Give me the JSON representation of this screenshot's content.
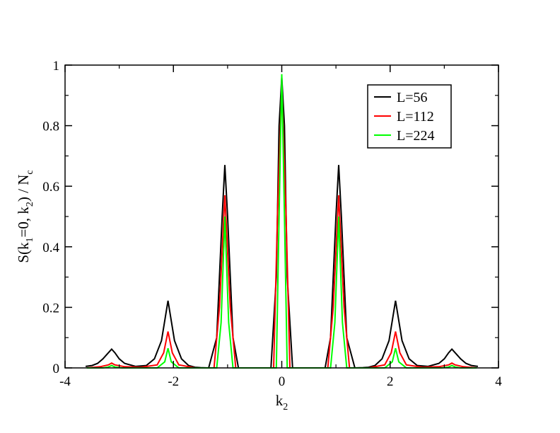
{
  "chart_data": {
    "type": "line",
    "title": "",
    "xlabel": "k",
    "xlabel_sub": "2",
    "ylabel_parts": [
      "S(k",
      "1",
      "=0, k",
      "2",
      ") / N",
      "c"
    ],
    "xlim": [
      -4,
      4
    ],
    "ylim": [
      0,
      1
    ],
    "xticks": [
      -4,
      -2,
      0,
      2,
      4
    ],
    "yticks": [
      0,
      0.2,
      0.4,
      0.6,
      0.8,
      1
    ],
    "xtick_labels": [
      "-4",
      "-2",
      "0",
      "2",
      "4"
    ],
    "ytick_labels": [
      "0",
      "0.2",
      "0.4",
      "0.6",
      "0.8",
      "1"
    ],
    "grid": false,
    "legend_position": "top-right",
    "series": [
      {
        "name": "L=56",
        "color": "#000000",
        "x": [
          -3.62,
          -3.5,
          -3.4,
          -3.3,
          -3.2,
          -3.14,
          -3.08,
          -3.0,
          -2.9,
          -2.7,
          -2.5,
          -2.35,
          -2.22,
          -2.1,
          -1.98,
          -1.85,
          -1.72,
          -1.6,
          -1.5,
          -1.35,
          -1.2,
          -1.1,
          -1.05,
          -1.0,
          -0.9,
          -0.8,
          -0.2,
          -0.1,
          -0.05,
          0.0,
          0.05,
          0.1,
          0.2,
          0.8,
          0.9,
          1.0,
          1.05,
          1.1,
          1.2,
          1.35,
          1.5,
          1.6,
          1.72,
          1.85,
          1.98,
          2.1,
          2.22,
          2.35,
          2.5,
          2.7,
          2.9,
          3.0,
          3.08,
          3.14,
          3.2,
          3.3,
          3.4,
          3.5,
          3.62
        ],
        "y": [
          0.005,
          0.008,
          0.015,
          0.03,
          0.05,
          0.062,
          0.05,
          0.03,
          0.015,
          0.005,
          0.008,
          0.03,
          0.09,
          0.222,
          0.09,
          0.03,
          0.008,
          0.002,
          0.001,
          0.0,
          0.1,
          0.5,
          0.67,
          0.5,
          0.1,
          0.0,
          0.0,
          0.3,
          0.8,
          0.96,
          0.8,
          0.3,
          0.0,
          0.0,
          0.1,
          0.5,
          0.67,
          0.5,
          0.1,
          0.0,
          0.001,
          0.002,
          0.008,
          0.03,
          0.09,
          0.222,
          0.09,
          0.03,
          0.008,
          0.005,
          0.015,
          0.03,
          0.05,
          0.062,
          0.05,
          0.03,
          0.015,
          0.008,
          0.005
        ]
      },
      {
        "name": "L=112",
        "color": "#ff0000",
        "x": [
          -3.6,
          -3.35,
          -3.2,
          -3.14,
          -3.08,
          -2.9,
          -2.6,
          -2.3,
          -2.18,
          -2.1,
          -2.02,
          -1.9,
          -1.6,
          -1.25,
          -1.15,
          -1.05,
          -0.95,
          -0.85,
          -0.15,
          -0.08,
          0.0,
          0.08,
          0.15,
          0.85,
          0.95,
          1.05,
          1.15,
          1.25,
          1.6,
          1.9,
          2.02,
          2.1,
          2.18,
          2.3,
          2.6,
          2.9,
          3.08,
          3.14,
          3.2,
          3.35,
          3.6
        ],
        "y": [
          0.0,
          0.004,
          0.01,
          0.016,
          0.01,
          0.004,
          0.002,
          0.01,
          0.05,
          0.12,
          0.05,
          0.01,
          0.0,
          0.0,
          0.2,
          0.57,
          0.2,
          0.0,
          0.0,
          0.5,
          0.93,
          0.5,
          0.0,
          0.0,
          0.2,
          0.57,
          0.2,
          0.0,
          0.0,
          0.01,
          0.05,
          0.12,
          0.05,
          0.01,
          0.002,
          0.004,
          0.01,
          0.016,
          0.01,
          0.004,
          0.0
        ]
      },
      {
        "name": "L=224",
        "color": "#00ff00",
        "x": [
          -3.6,
          -3.3,
          -3.2,
          -3.14,
          -3.08,
          -2.95,
          -2.3,
          -2.16,
          -2.1,
          -2.04,
          -1.9,
          -1.2,
          -1.12,
          -1.05,
          -0.98,
          -0.9,
          -0.1,
          -0.05,
          0.0,
          0.05,
          0.1,
          0.9,
          0.98,
          1.05,
          1.12,
          1.2,
          1.9,
          2.04,
          2.1,
          2.16,
          2.3,
          2.95,
          3.08,
          3.14,
          3.2,
          3.3,
          3.6
        ],
        "y": [
          0.0,
          0.0,
          0.003,
          0.008,
          0.003,
          0.0,
          0.0,
          0.02,
          0.065,
          0.02,
          0.0,
          0.0,
          0.15,
          0.5,
          0.15,
          0.0,
          0.0,
          0.5,
          0.97,
          0.5,
          0.0,
          0.0,
          0.15,
          0.5,
          0.15,
          0.0,
          0.0,
          0.02,
          0.065,
          0.02,
          0.0,
          0.0,
          0.003,
          0.008,
          0.003,
          0.0,
          0.0
        ]
      }
    ]
  }
}
